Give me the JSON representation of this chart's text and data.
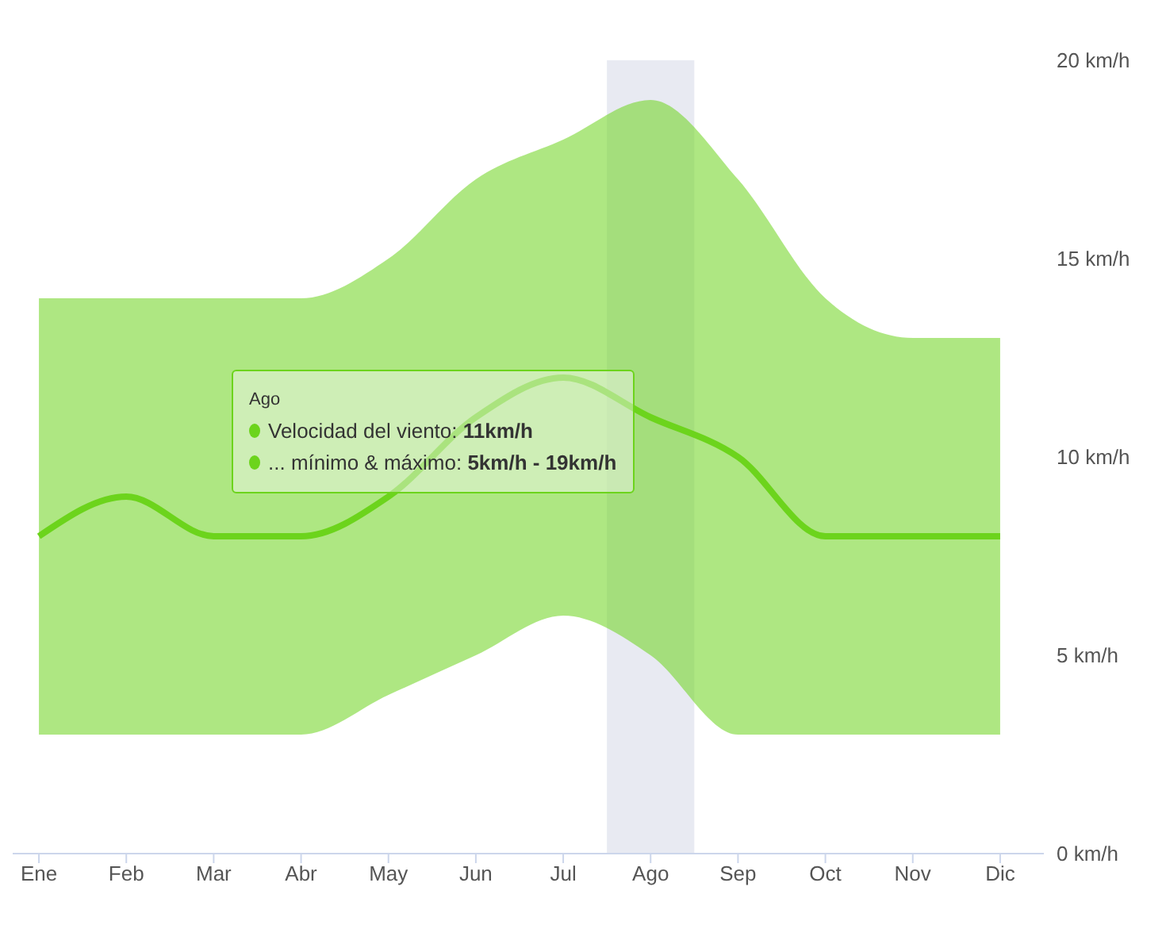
{
  "chart_data": {
    "type": "line",
    "categories": [
      "Ene",
      "Feb",
      "Mar",
      "Abr",
      "May",
      "Jun",
      "Jul",
      "Ago",
      "Sep",
      "Oct",
      "Nov",
      "Dic"
    ],
    "series": [
      {
        "color": "#6cd41c",
        "values": [
          8,
          9,
          8,
          8,
          9,
          11,
          12,
          11,
          10,
          8,
          8,
          8
        ],
        "lower": [
          3,
          3,
          3,
          3,
          4,
          5,
          6,
          5,
          3,
          3,
          3,
          3
        ],
        "upper": [
          14,
          14,
          14,
          14,
          15,
          17,
          18,
          19,
          17,
          14,
          13,
          13
        ]
      }
    ],
    "ylim": [
      0,
      20
    ],
    "yticks": [
      {
        "value": 0,
        "label": "0 km/h"
      },
      {
        "value": 5,
        "label": "5 km/h"
      },
      {
        "value": 10,
        "label": "10 km/h"
      },
      {
        "value": 15,
        "label": "15 km/h"
      },
      {
        "value": 20,
        "label": "20 km/h"
      }
    ],
    "bands": [
      {
        "axis": "x",
        "from": "Ago",
        "to": "Ago",
        "color": "#e8eaf2"
      }
    ],
    "annotations": [
      "Ago",
      "Velocidad del viento: 11km/h",
      "... mínimo & máximo: 5km/h - 19km/h"
    ],
    "grid": false,
    "legend": false,
    "marker": "none",
    "line_style": "solid"
  }
}
